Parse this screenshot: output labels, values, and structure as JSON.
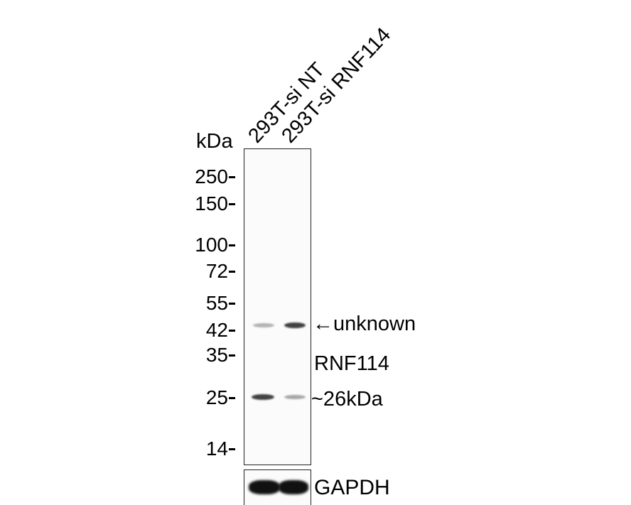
{
  "unit_label": "kDa",
  "lanes": [
    "293T-si NT",
    "293T-si RNF114"
  ],
  "markers": [
    "250",
    "150",
    "100",
    "72",
    "55",
    "42",
    "35",
    "25",
    "14"
  ],
  "annotations": {
    "unknown": "←unknown",
    "target": "RNF114",
    "target_size": "~26kDa",
    "loading_control": "GAPDH"
  },
  "band_intensity": {
    "unknown_42kDa": [
      0.35,
      0.8
    ],
    "rnf114_26kDa": [
      0.8,
      0.4
    ],
    "gapdh": [
      1.0,
      1.0
    ]
  }
}
